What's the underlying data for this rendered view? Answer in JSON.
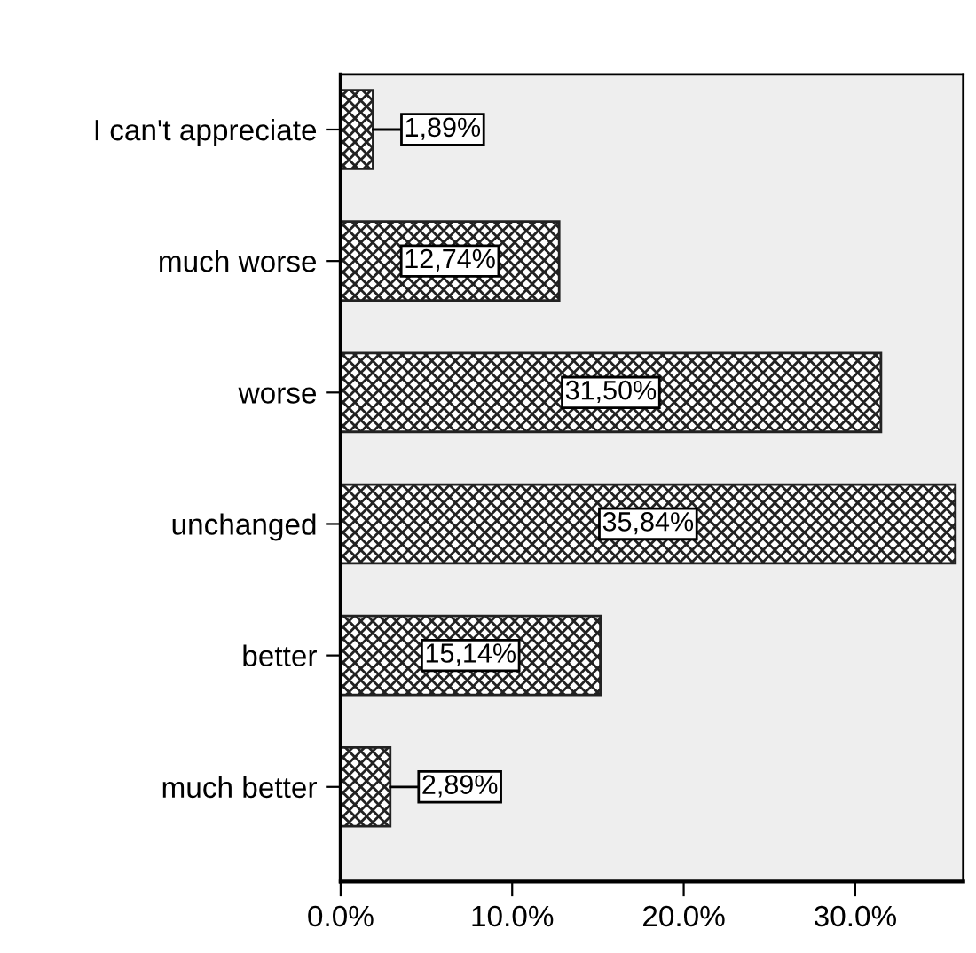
{
  "chart_data": {
    "type": "bar",
    "orientation": "horizontal",
    "categories": [
      "I can't appreciate",
      "much worse",
      "worse",
      "unchanged",
      "better",
      "much better"
    ],
    "values": [
      1.89,
      12.74,
      31.5,
      35.84,
      15.14,
      2.89
    ],
    "value_labels": [
      "1,89%",
      "12,74%",
      "31,50%",
      "35,84%",
      "15,14%",
      "2,89%"
    ],
    "color": "#222222",
    "xlim": [
      0,
      36.3
    ],
    "xticks": [
      {
        "value": 0,
        "label": "0.0%"
      },
      {
        "value": 10,
        "label": "10.0%"
      },
      {
        "value": 20,
        "label": "20.0%"
      },
      {
        "value": 30,
        "label": "30.0%"
      }
    ],
    "grid": false,
    "legend": false
  }
}
